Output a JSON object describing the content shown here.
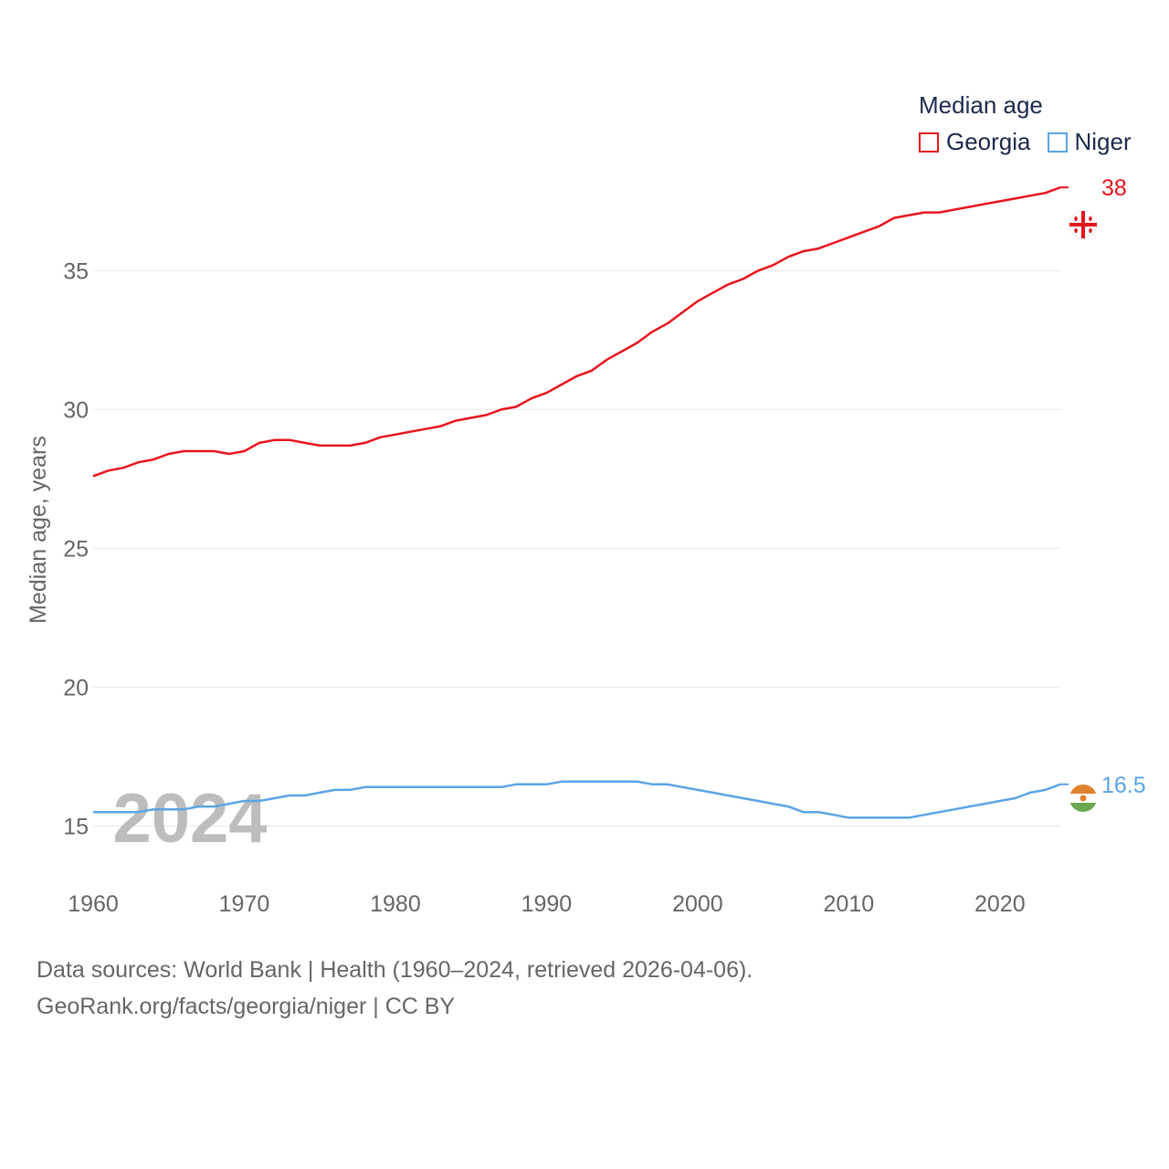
{
  "legend": {
    "title": "Median age",
    "items": [
      {
        "label": "Georgia",
        "color": "#e8141d"
      },
      {
        "label": "Niger",
        "color": "#5ba4e5"
      }
    ]
  },
  "footer": {
    "line1": "Data sources: World Bank | Health (1960–2024, retrieved 2026-04-06).",
    "line2": "GeoRank.org/facts/georgia/niger | CC BY"
  },
  "chart_data": {
    "type": "line",
    "title": "Median age",
    "ylabel": "Median age, years",
    "xlabel": "",
    "watermark_year": "2024",
    "x_ticks": [
      1960,
      1970,
      1980,
      1990,
      2000,
      2010,
      2020
    ],
    "y_ticks": [
      15,
      20,
      25,
      30,
      35
    ],
    "xlim": [
      1960,
      2024
    ],
    "ylim": [
      13.5,
      38.5
    ],
    "x": [
      1960,
      1961,
      1962,
      1963,
      1964,
      1965,
      1966,
      1967,
      1968,
      1969,
      1970,
      1971,
      1972,
      1973,
      1974,
      1975,
      1976,
      1977,
      1978,
      1979,
      1980,
      1981,
      1982,
      1983,
      1984,
      1985,
      1986,
      1987,
      1988,
      1989,
      1990,
      1991,
      1992,
      1993,
      1994,
      1995,
      1996,
      1997,
      1998,
      1999,
      2000,
      2001,
      2002,
      2003,
      2004,
      2005,
      2006,
      2007,
      2008,
      2009,
      2010,
      2011,
      2012,
      2013,
      2014,
      2015,
      2016,
      2017,
      2018,
      2019,
      2020,
      2021,
      2022,
      2023,
      2024
    ],
    "series": [
      {
        "name": "Georgia",
        "color": "#e8141d",
        "end_label": "38",
        "values": [
          27.6,
          27.8,
          27.9,
          28.1,
          28.2,
          28.4,
          28.5,
          28.5,
          28.5,
          28.4,
          28.5,
          28.8,
          28.9,
          28.9,
          28.8,
          28.7,
          28.7,
          28.7,
          28.8,
          29.0,
          29.1,
          29.2,
          29.3,
          29.4,
          29.6,
          29.7,
          29.8,
          30.0,
          30.1,
          30.4,
          30.6,
          30.9,
          31.2,
          31.4,
          31.8,
          32.1,
          32.4,
          32.8,
          33.1,
          33.5,
          33.9,
          34.2,
          34.5,
          34.7,
          35.0,
          35.2,
          35.5,
          35.7,
          35.8,
          36.0,
          36.2,
          36.4,
          36.6,
          36.9,
          37.0,
          37.1,
          37.1,
          37.2,
          37.3,
          37.4,
          37.5,
          37.6,
          37.7,
          37.8,
          38.0
        ]
      },
      {
        "name": "Niger",
        "color": "#5ba4e5",
        "end_label": "16.5",
        "values": [
          15.5,
          15.5,
          15.5,
          15.5,
          15.6,
          15.6,
          15.6,
          15.7,
          15.7,
          15.8,
          15.9,
          15.9,
          16.0,
          16.1,
          16.1,
          16.2,
          16.3,
          16.3,
          16.4,
          16.4,
          16.4,
          16.4,
          16.4,
          16.4,
          16.4,
          16.4,
          16.4,
          16.4,
          16.5,
          16.5,
          16.5,
          16.6,
          16.6,
          16.6,
          16.6,
          16.6,
          16.6,
          16.5,
          16.5,
          16.4,
          16.3,
          16.2,
          16.1,
          16.0,
          15.9,
          15.8,
          15.7,
          15.5,
          15.5,
          15.4,
          15.3,
          15.3,
          15.3,
          15.3,
          15.3,
          15.4,
          15.5,
          15.6,
          15.7,
          15.8,
          15.9,
          16.0,
          16.2,
          16.3,
          16.5
        ]
      }
    ]
  }
}
